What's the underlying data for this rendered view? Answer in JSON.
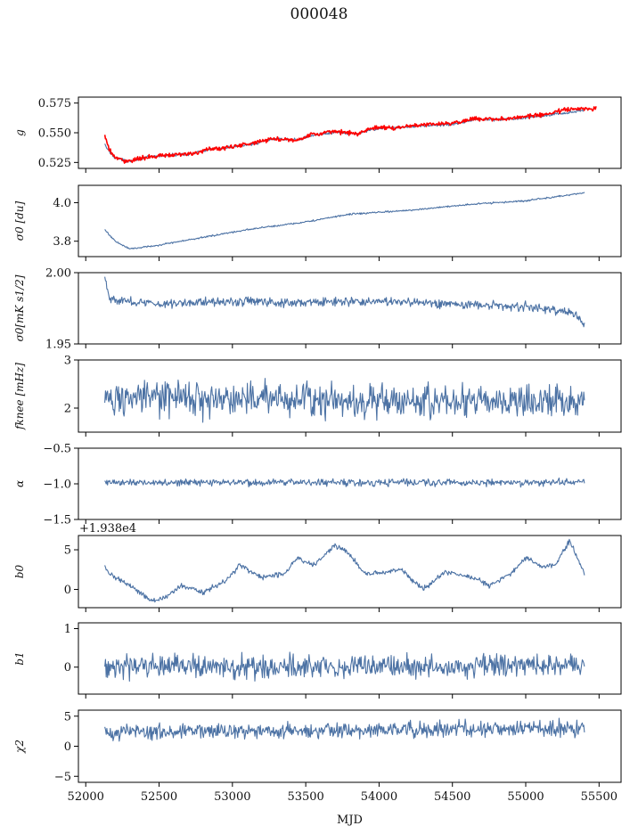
{
  "figure": {
    "title": "000048",
    "xlabel": "MJD"
  },
  "chart_data": [
    {
      "type": "line",
      "ylabel": "g",
      "ylim": [
        0.52,
        0.58
      ],
      "yticks": [
        "0.525",
        "0.550",
        "0.575"
      ],
      "xlim": [
        51950,
        55650
      ],
      "x_ticklabels_shown": false,
      "series": [
        {
          "color": "#4c72a4",
          "noise": 0.0008,
          "x_range": [
            52130,
            55400
          ],
          "anchors": [
            [
              52130,
              0.54
            ],
            [
              52160,
              0.534
            ],
            [
              52200,
              0.529
            ],
            [
              52280,
              0.526
            ],
            [
              52400,
              0.529
            ],
            [
              52550,
              0.531
            ],
            [
              52700,
              0.532
            ],
            [
              52850,
              0.536
            ],
            [
              53000,
              0.538
            ],
            [
              53150,
              0.541
            ],
            [
              53300,
              0.545
            ],
            [
              53450,
              0.544
            ],
            [
              53550,
              0.548
            ],
            [
              53700,
              0.55
            ],
            [
              53850,
              0.549
            ],
            [
              53950,
              0.553
            ],
            [
              54100,
              0.554
            ],
            [
              54300,
              0.556
            ],
            [
              54500,
              0.557
            ],
            [
              54650,
              0.561
            ],
            [
              54800,
              0.561
            ],
            [
              54950,
              0.562
            ],
            [
              55150,
              0.565
            ],
            [
              55300,
              0.567
            ],
            [
              55400,
              0.569
            ]
          ]
        },
        {
          "color": "#ff0000",
          "noise": 0.0013,
          "x_range": [
            52130,
            55480
          ],
          "anchors": [
            [
              52130,
              0.548
            ],
            [
              52160,
              0.536
            ],
            [
              52200,
              0.529
            ],
            [
              52280,
              0.526
            ],
            [
              52400,
              0.529
            ],
            [
              52550,
              0.531
            ],
            [
              52700,
              0.532
            ],
            [
              52850,
              0.536
            ],
            [
              53000,
              0.538
            ],
            [
              53150,
              0.542
            ],
            [
              53300,
              0.545
            ],
            [
              53450,
              0.544
            ],
            [
              53550,
              0.549
            ],
            [
              53700,
              0.551
            ],
            [
              53850,
              0.549
            ],
            [
              53950,
              0.554
            ],
            [
              54100,
              0.554
            ],
            [
              54300,
              0.557
            ],
            [
              54500,
              0.558
            ],
            [
              54650,
              0.562
            ],
            [
              54800,
              0.561
            ],
            [
              54950,
              0.563
            ],
            [
              55150,
              0.566
            ],
            [
              55300,
              0.57
            ],
            [
              55480,
              0.57
            ]
          ]
        }
      ]
    },
    {
      "type": "line",
      "ylabel": "σ0 [du]",
      "ylim": [
        3.72,
        4.09
      ],
      "yticks": [
        "3.8",
        "4.0"
      ],
      "xlim": [
        51950,
        55650
      ],
      "x_ticklabels_shown": false,
      "series": [
        {
          "color": "#4c72a4",
          "noise": 0.003,
          "x_range": [
            52130,
            55400
          ],
          "anchors": [
            [
              52130,
              3.86
            ],
            [
              52200,
              3.8
            ],
            [
              52300,
              3.76
            ],
            [
              52500,
              3.78
            ],
            [
              52800,
              3.82
            ],
            [
              53100,
              3.86
            ],
            [
              53500,
              3.9
            ],
            [
              53800,
              3.94
            ],
            [
              54200,
              3.96
            ],
            [
              54600,
              3.99
            ],
            [
              55000,
              4.01
            ],
            [
              55300,
              4.04
            ],
            [
              55400,
              4.05
            ]
          ]
        }
      ]
    },
    {
      "type": "line",
      "ylabel": "σ0[mK s1/2]",
      "ylim": [
        1.95,
        2.0
      ],
      "yticks": [
        "1.95",
        "2.00"
      ],
      "xlim": [
        51950,
        55650
      ],
      "x_ticklabels_shown": false,
      "series": [
        {
          "color": "#4c72a4",
          "noise": 0.0022,
          "x_range": [
            52130,
            55400
          ],
          "anchors": [
            [
              52130,
              1.997
            ],
            [
              52170,
              1.981
            ],
            [
              52500,
              1.978
            ],
            [
              52900,
              1.98
            ],
            [
              53500,
              1.979
            ],
            [
              54000,
              1.98
            ],
            [
              54500,
              1.978
            ],
            [
              55000,
              1.976
            ],
            [
              55330,
              1.972
            ],
            [
              55400,
              1.963
            ]
          ]
        }
      ]
    },
    {
      "type": "line",
      "ylabel": "fknee [mHz]",
      "ylim": [
        1.5,
        3.0
      ],
      "yticks": [
        "2",
        "3"
      ],
      "xlim": [
        51950,
        55650
      ],
      "x_ticklabels_shown": false,
      "series": [
        {
          "color": "#4c72a4",
          "noise": 0.25,
          "x_range": [
            52130,
            55400
          ],
          "anchors": [
            [
              52130,
              2.2
            ],
            [
              52500,
              2.2
            ],
            [
              53000,
              2.2
            ],
            [
              53500,
              2.2
            ],
            [
              54000,
              2.15
            ],
            [
              54500,
              2.15
            ],
            [
              55000,
              2.15
            ],
            [
              55400,
              2.1
            ]
          ]
        }
      ]
    },
    {
      "type": "line",
      "ylabel": "α",
      "ylim": [
        -1.5,
        -0.5
      ],
      "yticks": [
        "-1.5",
        "-1.0",
        "-0.5"
      ],
      "xlim": [
        51950,
        55650
      ],
      "x_ticklabels_shown": false,
      "series": [
        {
          "color": "#4c72a4",
          "noise": 0.035,
          "x_range": [
            52130,
            55400
          ],
          "anchors": [
            [
              52130,
              -0.98
            ],
            [
              53000,
              -0.98
            ],
            [
              54000,
              -0.98
            ],
            [
              55400,
              -0.98
            ]
          ]
        }
      ]
    },
    {
      "type": "line",
      "ylabel": "b0",
      "offset_text": "+1.938e4",
      "ylim": [
        -2.3,
        6.8
      ],
      "yticks": [
        "0",
        "5"
      ],
      "xlim": [
        51950,
        55650
      ],
      "x_ticklabels_shown": false,
      "series": [
        {
          "color": "#4c72a4",
          "noise": 0.22,
          "x_range": [
            52130,
            55400
          ],
          "anchors": [
            [
              52130,
              3.0
            ],
            [
              52160,
              2.0
            ],
            [
              52300,
              0.5
            ],
            [
              52450,
              -1.5
            ],
            [
              52550,
              -1.0
            ],
            [
              52650,
              0.5
            ],
            [
              52800,
              -0.4
            ],
            [
              52950,
              1.0
            ],
            [
              53050,
              3.1
            ],
            [
              53200,
              1.5
            ],
            [
              53350,
              2.0
            ],
            [
              53450,
              4.0
            ],
            [
              53550,
              3.0
            ],
            [
              53700,
              5.6
            ],
            [
              53800,
              4.5
            ],
            [
              53900,
              2.0
            ],
            [
              54000,
              2.0
            ],
            [
              54150,
              2.5
            ],
            [
              54300,
              0.0
            ],
            [
              54450,
              2.2
            ],
            [
              54650,
              1.5
            ],
            [
              54750,
              0.5
            ],
            [
              54900,
              2.0
            ],
            [
              55000,
              4.0
            ],
            [
              55100,
              3.0
            ],
            [
              55200,
              3.0
            ],
            [
              55300,
              6.2
            ],
            [
              55400,
              2.0
            ]
          ]
        }
      ]
    },
    {
      "type": "line",
      "ylabel": "b1",
      "ylim": [
        -0.7,
        1.15
      ],
      "yticks": [
        "0",
        "1"
      ],
      "xlim": [
        51950,
        55650
      ],
      "x_ticklabels_shown": false,
      "series": [
        {
          "color": "#4c72a4",
          "noise": 0.2,
          "x_range": [
            52130,
            55400
          ],
          "anchors": [
            [
              52130,
              0.05
            ],
            [
              53000,
              0.0
            ],
            [
              54000,
              0.02
            ],
            [
              55400,
              0.05
            ]
          ]
        }
      ]
    },
    {
      "type": "line",
      "ylabel": "χ2",
      "ylim": [
        -6,
        6
      ],
      "yticks": [
        "-5",
        "0",
        "5"
      ],
      "xlim": [
        51950,
        55650
      ],
      "xticks": [
        "52000",
        "52500",
        "53000",
        "53500",
        "54000",
        "54500",
        "55000",
        "55500"
      ],
      "x_ticklabels_shown": true,
      "series": [
        {
          "color": "#4c72a4",
          "noise": 0.9,
          "x_range": [
            52130,
            55400
          ],
          "anchors": [
            [
              52130,
              2.5
            ],
            [
              53000,
              2.5
            ],
            [
              54000,
              2.7
            ],
            [
              55400,
              3.0
            ]
          ]
        }
      ]
    }
  ]
}
